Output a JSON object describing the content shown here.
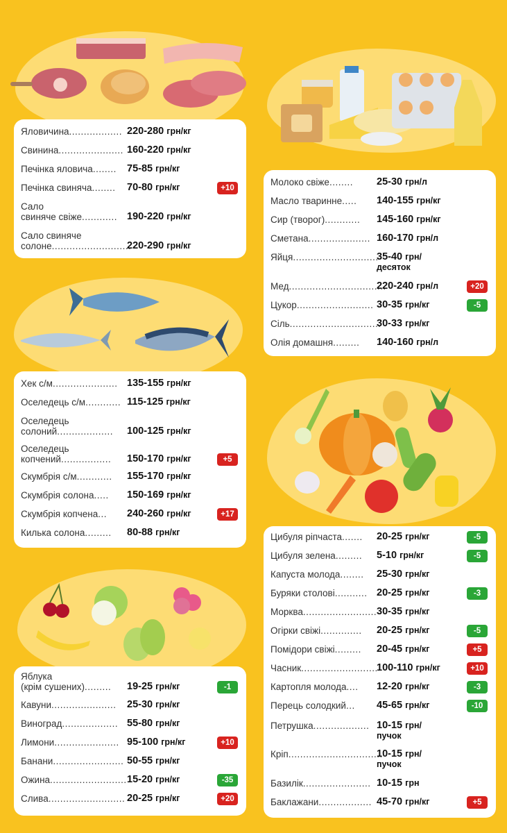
{
  "colors": {
    "background": "#f9c21f",
    "blob": "#fddc74",
    "increase": "#d8231f",
    "decrease": "#2aa637"
  },
  "sections": {
    "meat": {
      "illustration": "meat-icon",
      "items": [
        {
          "name": "Яловичина",
          "dots": "..................",
          "price": "220-280",
          "unit": "грн/кг",
          "change": ""
        },
        {
          "name": "Свинина",
          "dots": "......................",
          "price": "160-220",
          "unit": "грн/кг",
          "change": ""
        },
        {
          "name": "Печінка яловича",
          "dots": "........",
          "price": "75-85",
          "unit": "грн/кг",
          "change": ""
        },
        {
          "name": "Печінка свиняча",
          "dots": "........",
          "price": "70-80",
          "unit": "грн/кг",
          "change": "+10"
        },
        {
          "name": "Сало",
          "name2": "свиняче свіже",
          "dots": "............",
          "price": "190-220",
          "unit": "грн/кг",
          "change": ""
        },
        {
          "name": "Сало свиняче",
          "name2": "солоне",
          "dots": "...........................",
          "price": "220-290",
          "unit": "грн/кг",
          "change": ""
        }
      ]
    },
    "fish": {
      "illustration": "fish-icon",
      "items": [
        {
          "name": "Хек с/м",
          "dots": "......................",
          "price": "135-155",
          "unit": "грн/кг",
          "change": ""
        },
        {
          "name": "Оселедець с/м",
          "dots": "............",
          "price": "115-125",
          "unit": "грн/кг",
          "change": ""
        },
        {
          "name": "Оселедець",
          "name2": "солоний",
          "dots": "...................",
          "price": "100-125",
          "unit": "грн/кг",
          "change": ""
        },
        {
          "name": "Оселедець",
          "name2": "копчений",
          "dots": ".................",
          "price": "150-170",
          "unit": "грн/кг",
          "change": "+5"
        },
        {
          "name": "Скумбрія с/м",
          "dots": "............",
          "price": "155-170",
          "unit": "грн/кг",
          "change": ""
        },
        {
          "name": "Скумбрія солона",
          "dots": ".....",
          "price": "150-169",
          "unit": "грн/кг",
          "change": ""
        },
        {
          "name": "Скумбрія копчена",
          "dots": "...",
          "price": "240-260",
          "unit": "грн/кг",
          "change": "+17"
        },
        {
          "name": "Килька солона",
          "dots": ".........",
          "price": "80-88",
          "unit": "грн/кг",
          "change": ""
        }
      ]
    },
    "fruits": {
      "illustration": "fruits-icon",
      "items": [
        {
          "name": "Яблука",
          "name2": "(крім сушених)",
          "dots": ".........",
          "price": "19-25",
          "unit": "грн/кг",
          "change": "-1"
        },
        {
          "name": "Кавуни",
          "dots": "......................",
          "price": "25-30",
          "unit": "грн/кг",
          "change": ""
        },
        {
          "name": "Виноград",
          "dots": "...................",
          "price": "55-80",
          "unit": "грн/кг",
          "change": ""
        },
        {
          "name": "Лимони",
          "dots": "......................",
          "price": "95-100",
          "unit": "грн/кг",
          "change": "+10"
        },
        {
          "name": "Банани",
          "dots": "........................",
          "price": "50-55",
          "unit": "грн/кг",
          "change": ""
        },
        {
          "name": "Ожина",
          "dots": "..........................",
          "price": "15-20",
          "unit": "грн/кг",
          "change": "-35"
        },
        {
          "name": "Слива",
          "dots": "..........................",
          "price": "20-25",
          "unit": "грн/кг",
          "change": "+20"
        }
      ]
    },
    "dairy": {
      "illustration": "dairy-icon",
      "items": [
        {
          "name": "Молоко свіже",
          "dots": "........",
          "price": "25-30",
          "unit": "грн/л",
          "change": ""
        },
        {
          "name": "Масло тваринне",
          "dots": ".....",
          "price": "140-155",
          "unit": "грн/кг",
          "change": ""
        },
        {
          "name": "Сир (творог)",
          "dots": "............",
          "price": "145-160",
          "unit": "грн/кг",
          "change": ""
        },
        {
          "name": "Сметана",
          "dots": ".....................",
          "price": "160-170",
          "unit": "грн/л",
          "change": ""
        },
        {
          "name": "Яйця",
          "dots": ".............................",
          "price": "35-40",
          "unit": "грн/",
          "unit2": "десяток",
          "change": ""
        },
        {
          "name": "Мед",
          "dots": ".................................",
          "price": "220-240",
          "unit": "грн/л",
          "change": "+20"
        },
        {
          "name": "Цукор",
          "dots": "..........................",
          "price": "30-35",
          "unit": "грн/кг",
          "change": "-5"
        },
        {
          "name": "Сіль",
          "dots": "...............................",
          "price": "30-33",
          "unit": "грн/кг",
          "change": ""
        },
        {
          "name": "Олія домашня",
          "dots": ".........",
          "price": "140-160",
          "unit": "грн/л",
          "change": ""
        }
      ]
    },
    "vegetables": {
      "illustration": "vegetables-icon",
      "items": [
        {
          "name": "Цибуля ріпчаста",
          "dots": ".......",
          "price": "20-25",
          "unit": "грн/кг",
          "change": "-5"
        },
        {
          "name": "Цибуля зелена",
          "dots": ".........",
          "price": "5-10",
          "unit": "грн/кг",
          "change": "-5"
        },
        {
          "name": "Капуста молода",
          "dots": "........",
          "price": "25-30",
          "unit": "грн/кг",
          "change": ""
        },
        {
          "name": "Буряки столові",
          "dots": "...........",
          "price": "20-25",
          "unit": "грн/кг",
          "change": "-3"
        },
        {
          "name": "Морква",
          "dots": ".........................",
          "price": "30-35",
          "unit": "грн/кг",
          "change": ""
        },
        {
          "name": "Огірки свіжі",
          "dots": "..............",
          "price": "20-25",
          "unit": "грн/кг",
          "change": "-5"
        },
        {
          "name": "Помідори свіжі",
          "dots": ".........",
          "price": "20-45",
          "unit": "грн/кг",
          "change": "+5"
        },
        {
          "name": "Часник",
          "dots": "..........................",
          "price": "100-110",
          "unit": "грн/кг",
          "change": "+10"
        },
        {
          "name": "Картопля молода",
          "dots": "....",
          "price": "12-20",
          "unit": "грн/кг",
          "change": "-3"
        },
        {
          "name": "Перець солодкий",
          "dots": "...",
          "price": "45-65",
          "unit": "грн/кг",
          "change": "-10"
        },
        {
          "name": "Петрушка",
          "dots": "...................",
          "price": "10-15",
          "unit": "грн/",
          "unit2": "пучок",
          "change": ""
        },
        {
          "name": "Кріп",
          "dots": "................................",
          "price": "10-15",
          "unit": "грн/",
          "unit2": "пучок",
          "change": ""
        },
        {
          "name": "Базилік",
          "dots": ".......................",
          "price": "10-15",
          "unit": "грн",
          "change": ""
        },
        {
          "name": "Баклажани",
          "dots": "..................",
          "price": "45-70",
          "unit": "грн/кг",
          "change": "+5"
        }
      ]
    }
  }
}
